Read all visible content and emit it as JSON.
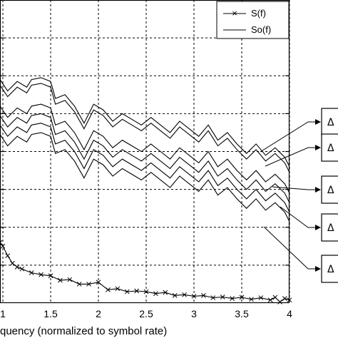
{
  "chart_data": {
    "type": "line",
    "title": "",
    "xlabel": "quency (normalized to symbol rate)",
    "ylabel": "",
    "xlim": [
      0.97,
      4.0
    ],
    "ylim": [
      0,
      8
    ],
    "x_ticks": [
      "1",
      "1.5",
      "2",
      "2.5",
      "3",
      "3.5",
      "4"
    ],
    "grid": true,
    "legend": {
      "placement": "top-right",
      "entries": [
        {
          "label": "S(f)",
          "marker": "x"
        },
        {
          "label": "So(f)",
          "marker": "none"
        }
      ]
    },
    "annotation_labels": [
      "Δ",
      "Δ",
      "Δ",
      "Δ",
      "Δ"
    ],
    "series": [
      {
        "style": "x-marker",
        "x": [
          0.97,
          1.0,
          1.05,
          1.1,
          1.15,
          1.2,
          1.3,
          1.4,
          1.5,
          1.6,
          1.7,
          1.8,
          1.9,
          2.0,
          2.1,
          2.2,
          2.3,
          2.4,
          2.5,
          2.6,
          2.7,
          2.8,
          2.9,
          3.0,
          3.1,
          3.2,
          3.3,
          3.4,
          3.5,
          3.6,
          3.7,
          3.8,
          3.85,
          3.9,
          3.95,
          4.0
        ],
        "y": [
          1.6,
          1.5,
          1.25,
          1.05,
          0.95,
          0.9,
          0.8,
          0.75,
          0.72,
          0.6,
          0.62,
          0.5,
          0.5,
          0.55,
          0.35,
          0.38,
          0.3,
          0.32,
          0.3,
          0.25,
          0.28,
          0.2,
          0.22,
          0.18,
          0.2,
          0.14,
          0.16,
          0.12,
          0.15,
          0.1,
          0.14,
          0.08,
          0.15,
          0.03,
          0.12,
          0.08
        ]
      },
      {
        "style": "line",
        "x": [
          0.97,
          1.05,
          1.15,
          1.25,
          1.3,
          1.4,
          1.5,
          1.55,
          1.65,
          1.75,
          1.85,
          1.95,
          2.05,
          2.15,
          2.25,
          2.35,
          2.45,
          2.55,
          2.65,
          2.75,
          2.85,
          2.95,
          3.05,
          3.15,
          3.25,
          3.35,
          3.45,
          3.55,
          3.65,
          3.75,
          3.85,
          3.95,
          4.0
        ],
        "y": [
          5.9,
          5.6,
          5.85,
          5.7,
          5.9,
          5.95,
          5.85,
          5.4,
          5.5,
          5.2,
          4.75,
          5.25,
          5.1,
          4.8,
          5.0,
          4.85,
          4.7,
          4.9,
          4.7,
          4.5,
          4.8,
          4.6,
          4.4,
          4.7,
          4.3,
          4.5,
          4.2,
          3.95,
          4.2,
          3.9,
          4.1,
          3.85,
          3.6
        ]
      },
      {
        "style": "line",
        "x": [
          0.97,
          1.05,
          1.15,
          1.25,
          1.3,
          1.4,
          1.5,
          1.55,
          1.65,
          1.75,
          1.85,
          1.95,
          2.05,
          2.15,
          2.25,
          2.35,
          2.45,
          2.55,
          2.65,
          2.75,
          2.85,
          2.95,
          3.05,
          3.15,
          3.25,
          3.35,
          3.45,
          3.55,
          3.65,
          3.75,
          3.85,
          3.95,
          4.0
        ],
        "y": [
          5.75,
          5.45,
          5.7,
          5.55,
          5.75,
          5.8,
          5.7,
          5.25,
          5.35,
          5.05,
          4.6,
          5.1,
          4.95,
          4.65,
          4.85,
          4.7,
          4.55,
          4.75,
          4.55,
          4.35,
          4.65,
          4.45,
          4.25,
          4.55,
          4.15,
          4.35,
          4.05,
          3.8,
          4.05,
          3.75,
          3.95,
          3.7,
          3.45
        ]
      },
      {
        "style": "line",
        "x": [
          0.97,
          1.05,
          1.15,
          1.25,
          1.3,
          1.4,
          1.5,
          1.55,
          1.65,
          1.75,
          1.85,
          1.95,
          2.05,
          2.15,
          2.25,
          2.35,
          2.45,
          2.55,
          2.65,
          2.75,
          2.85,
          2.95,
          3.05,
          3.15,
          3.25,
          3.35,
          3.45,
          3.55,
          3.65,
          3.75,
          3.85,
          3.95,
          4.0
        ],
        "y": [
          5.2,
          4.9,
          5.15,
          5.0,
          5.2,
          5.25,
          5.15,
          4.7,
          4.8,
          4.5,
          4.05,
          4.55,
          4.4,
          4.1,
          4.3,
          4.15,
          4.0,
          4.2,
          4.0,
          3.8,
          4.1,
          3.9,
          3.7,
          4.0,
          3.6,
          3.8,
          3.5,
          3.25,
          3.5,
          3.2,
          3.4,
          3.15,
          2.9
        ]
      },
      {
        "style": "line",
        "x": [
          0.97,
          1.05,
          1.15,
          1.25,
          1.3,
          1.4,
          1.5,
          1.55,
          1.65,
          1.75,
          1.85,
          1.95,
          2.05,
          2.15,
          2.25,
          2.35,
          2.45,
          2.55,
          2.65,
          2.75,
          2.85,
          2.95,
          3.05,
          3.15,
          3.25,
          3.35,
          3.45,
          3.55,
          3.65,
          3.75,
          3.85,
          3.95,
          4.0
        ],
        "y": [
          4.95,
          4.65,
          4.9,
          4.75,
          4.95,
          5.0,
          4.9,
          4.45,
          4.55,
          4.25,
          3.8,
          4.3,
          4.15,
          3.85,
          4.05,
          3.9,
          3.75,
          3.95,
          3.75,
          3.55,
          3.85,
          3.65,
          3.45,
          3.75,
          3.35,
          3.55,
          3.25,
          3.0,
          3.25,
          2.95,
          3.15,
          2.9,
          2.65
        ]
      },
      {
        "style": "line",
        "x": [
          0.97,
          1.05,
          1.15,
          1.25,
          1.3,
          1.4,
          1.5,
          1.55,
          1.65,
          1.75,
          1.85,
          1.95,
          2.05,
          2.15,
          2.25,
          2.35,
          2.45,
          2.55,
          2.65,
          2.75,
          2.85,
          2.95,
          3.05,
          3.15,
          3.25,
          3.35,
          3.45,
          3.55,
          3.65,
          3.75,
          3.85,
          3.95,
          4.0
        ],
        "y": [
          4.7,
          4.4,
          4.65,
          4.5,
          4.7,
          4.75,
          4.65,
          4.2,
          4.3,
          4.0,
          3.55,
          4.05,
          3.9,
          3.6,
          3.8,
          3.65,
          3.5,
          3.7,
          3.5,
          3.3,
          3.6,
          3.4,
          3.2,
          3.5,
          3.1,
          3.3,
          3.0,
          2.75,
          3.0,
          2.7,
          2.9,
          2.65,
          2.4
        ]
      },
      {
        "style": "line",
        "x": [
          0.97,
          1.05,
          1.15,
          1.25,
          1.3,
          1.4,
          1.5,
          1.55,
          1.65,
          1.75,
          1.85,
          1.95,
          2.05,
          2.15,
          2.25,
          2.35,
          2.45,
          2.55,
          2.65,
          2.75,
          2.85,
          2.95,
          3.05,
          3.15,
          3.25,
          3.35,
          3.45,
          3.55,
          3.65,
          3.75,
          3.85,
          3.95,
          4.0
        ],
        "y": [
          4.45,
          4.15,
          4.4,
          4.25,
          4.45,
          4.5,
          4.4,
          3.95,
          4.05,
          3.75,
          3.3,
          3.8,
          3.65,
          3.35,
          3.55,
          3.4,
          3.25,
          3.45,
          3.25,
          3.05,
          3.35,
          3.15,
          2.95,
          3.25,
          2.85,
          3.05,
          2.75,
          2.5,
          2.75,
          2.45,
          2.65,
          2.4,
          2.15
        ]
      }
    ]
  }
}
